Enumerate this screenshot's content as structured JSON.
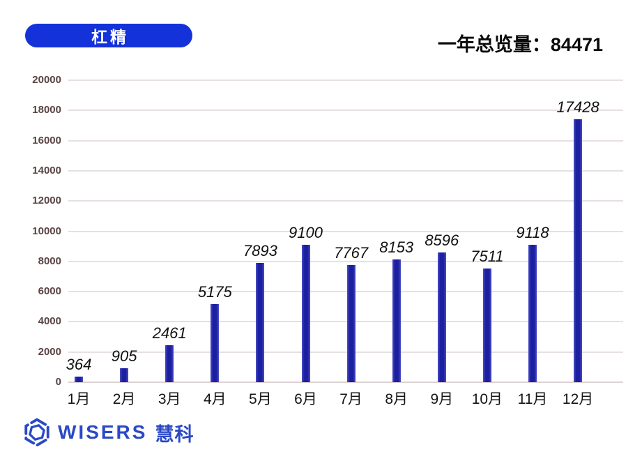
{
  "header": {
    "badge_label": "杠精",
    "total_prefix": "一年总览量：",
    "total_value": "84471"
  },
  "footer": {
    "logo_text": "WISERS",
    "logo_suffix": "慧科"
  },
  "colors": {
    "badge_bg": "#1432da",
    "bar_fill": "#1c1fa0",
    "bar_edge": "#4a4ec5",
    "grid": "#e6e0e0",
    "ytick": "#5a4343",
    "logo_blue": "#2b49c5",
    "text": "#111111"
  },
  "chart_data": {
    "type": "bar",
    "categories": [
      "1月",
      "2月",
      "3月",
      "4月",
      "5月",
      "6月",
      "7月",
      "8月",
      "9月",
      "10月",
      "11月",
      "12月"
    ],
    "values": [
      364,
      905,
      2461,
      5175,
      7893,
      9100,
      7767,
      8153,
      8596,
      7511,
      9118,
      17428
    ],
    "title": "",
    "xlabel": "",
    "ylabel": "",
    "ylim": [
      0,
      20000
    ],
    "ytick_step": 2000,
    "grid": true,
    "legend": false,
    "value_labels": true,
    "bar_color": "#1c1fa0"
  }
}
